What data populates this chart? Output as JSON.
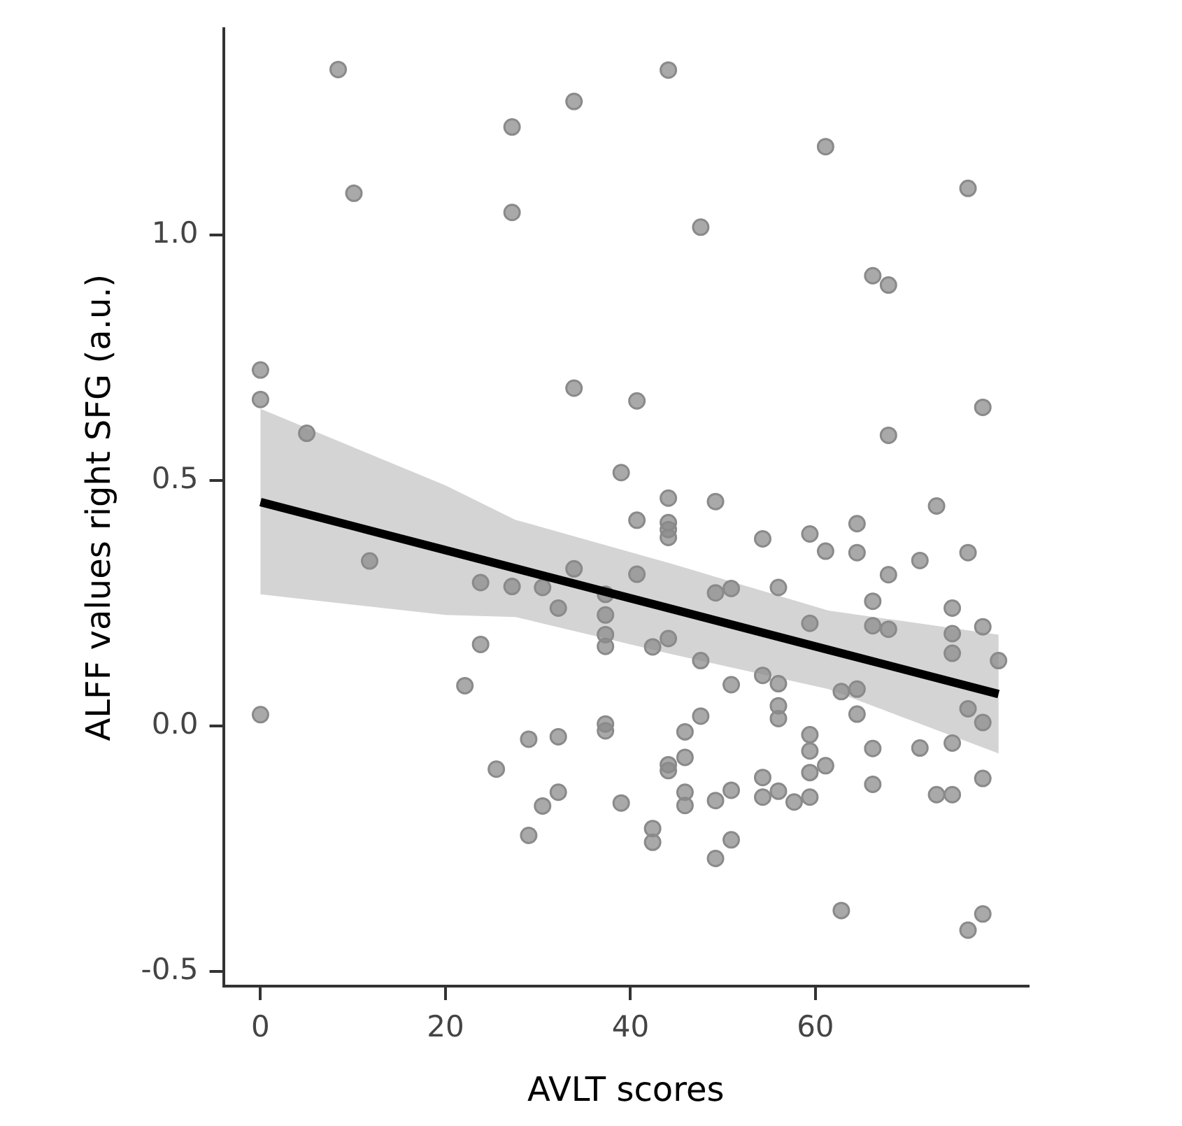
{
  "chart_data": {
    "type": "scatter",
    "xlabel": "AVLT scores",
    "ylabel": "ALFF values right SFG (a.u.)",
    "xlim": [
      -4,
      83
    ],
    "ylim": [
      -0.53,
      1.42
    ],
    "xticks": [
      0,
      20,
      40,
      60
    ],
    "yticks": [
      {
        "value": -0.5,
        "label": "-0.5"
      },
      {
        "value": 0,
        "label": "0.0"
      },
      {
        "value": 0.5,
        "label": "0.5"
      },
      {
        "value": 1,
        "label": "1.0"
      }
    ],
    "grid": false,
    "legend": false,
    "marker": "circle",
    "series": [
      {
        "color": "#8a8a8a",
        "x": [
          8.4,
          27.2,
          10.1,
          27.2,
          0,
          0,
          5.0,
          44.1,
          33.9,
          61.1,
          76.5,
          47.6,
          66.2,
          67.9,
          33.9,
          40.7,
          78.1,
          67.9,
          39.0,
          11.8,
          23.8,
          27.2,
          23.8,
          22.1,
          0,
          25.5,
          44.1,
          49.2,
          73.1,
          40.7,
          44.1,
          44.1,
          44.1,
          54.3,
          59.4,
          64.5,
          61.1,
          64.5,
          76.5,
          71.3,
          67.9,
          33.9,
          40.7,
          30.5,
          32.2,
          37.3,
          37.3,
          37.3,
          37.3,
          49.2,
          50.9,
          56.0,
          66.2,
          74.8,
          78.1,
          59.4,
          66.2,
          67.9,
          74.8,
          74.8,
          79.8,
          42.4,
          44.1,
          47.6,
          54.3,
          56.0,
          50.9,
          62.8,
          64.5,
          64.5,
          56.0,
          56.0,
          76.5,
          78.1,
          47.6,
          37.3,
          37.3,
          45.9,
          59.4,
          59.4,
          29.0,
          32.2,
          66.2,
          71.3,
          74.8,
          44.1,
          44.1,
          45.9,
          61.1,
          59.4,
          78.1,
          66.2,
          54.3,
          30.5,
          32.2,
          39.0,
          45.9,
          45.9,
          49.2,
          50.9,
          54.3,
          56.0,
          57.7,
          59.4,
          73.1,
          74.8,
          29.0,
          42.4,
          42.4,
          50.9,
          49.2,
          62.8,
          78.1,
          76.5
        ],
        "values": [
          1.337,
          1.22,
          1.085,
          1.046,
          0.725,
          0.665,
          0.596,
          1.336,
          1.272,
          1.18,
          1.095,
          1.016,
          0.917,
          0.898,
          0.688,
          0.662,
          0.649,
          0.592,
          0.516,
          0.336,
          0.292,
          0.284,
          0.166,
          0.082,
          0.023,
          -0.088,
          0.464,
          0.457,
          0.448,
          0.419,
          0.414,
          0.4,
          0.384,
          0.381,
          0.391,
          0.412,
          0.356,
          0.353,
          0.353,
          0.337,
          0.308,
          0.32,
          0.309,
          0.282,
          0.24,
          0.268,
          0.226,
          0.186,
          0.162,
          0.271,
          0.28,
          0.282,
          0.254,
          0.24,
          0.202,
          0.209,
          0.204,
          0.197,
          0.188,
          0.148,
          0.133,
          0.161,
          0.178,
          0.133,
          0.103,
          0.086,
          0.084,
          0.07,
          0.075,
          0.024,
          0.041,
          0.015,
          0.035,
          0.007,
          0.02,
          0.004,
          -0.01,
          -0.012,
          -0.018,
          -0.051,
          -0.027,
          -0.022,
          -0.046,
          -0.045,
          -0.035,
          -0.079,
          -0.091,
          -0.064,
          -0.081,
          -0.095,
          -0.107,
          -0.119,
          -0.105,
          -0.163,
          -0.135,
          -0.157,
          -0.135,
          -0.162,
          -0.152,
          -0.131,
          -0.145,
          -0.133,
          -0.155,
          -0.145,
          -0.14,
          -0.14,
          -0.223,
          -0.209,
          -0.237,
          -0.232,
          -0.27,
          -0.376,
          -0.383,
          -0.416
        ]
      },
      {
        "type": "line",
        "marker": "none",
        "color": "#000000",
        "x": [
          0,
          20,
          27.55,
          44.5,
          61.4,
          79.8
        ],
        "values": [
          0.456,
          0.358,
          0.321,
          0.238,
          0.155,
          0.065
        ],
        "lower": [
          0.268,
          0.226,
          0.222,
          0.146,
          0.075,
          -0.056
        ],
        "upper": [
          0.646,
          0.49,
          0.42,
          0.33,
          0.235,
          0.186
        ]
      }
    ]
  }
}
